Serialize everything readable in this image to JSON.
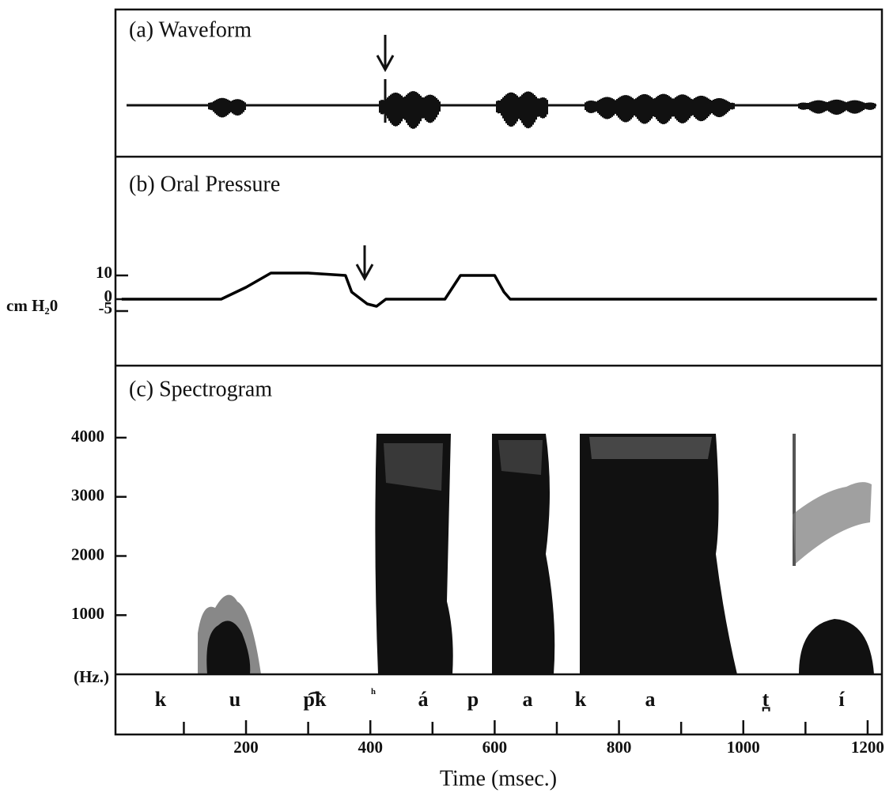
{
  "chart_data": [
    {
      "type": "waveform",
      "title": "(a)  Waveform"
    },
    {
      "type": "line",
      "title": "(b)  Oral Pressure",
      "ylabel": "cm H₂0",
      "x": [
        0,
        160,
        200,
        240,
        300,
        360,
        370,
        395,
        410,
        425,
        520,
        545,
        600,
        615,
        625,
        1215
      ],
      "values": [
        0,
        0,
        5,
        11,
        11,
        10,
        3,
        -2,
        -3,
        0,
        0,
        10,
        10,
        3,
        0,
        0
      ],
      "color": "#000000",
      "ylim": [
        -28,
        60
      ],
      "yticks": [
        10,
        0,
        -5
      ]
    },
    {
      "type": "spectrogram",
      "title": "(c)  Spectrogram",
      "ylabel": "(Hz.)",
      "ylim": [
        0,
        5217
      ],
      "yticks": [
        1000,
        2000,
        3000,
        4000
      ],
      "segments": [
        "k",
        "u",
        "p͡k",
        "ʰ",
        "á",
        "p",
        "a",
        "k",
        "a",
        "t̪",
        "í"
      ],
      "xlim": [
        -10,
        1223
      ],
      "xticks": [
        200,
        400,
        600,
        800,
        1000,
        1200
      ],
      "xminorticks": [
        100,
        300,
        500,
        700,
        900,
        1100
      ],
      "xlabel": "Time (msec.)"
    }
  ]
}
